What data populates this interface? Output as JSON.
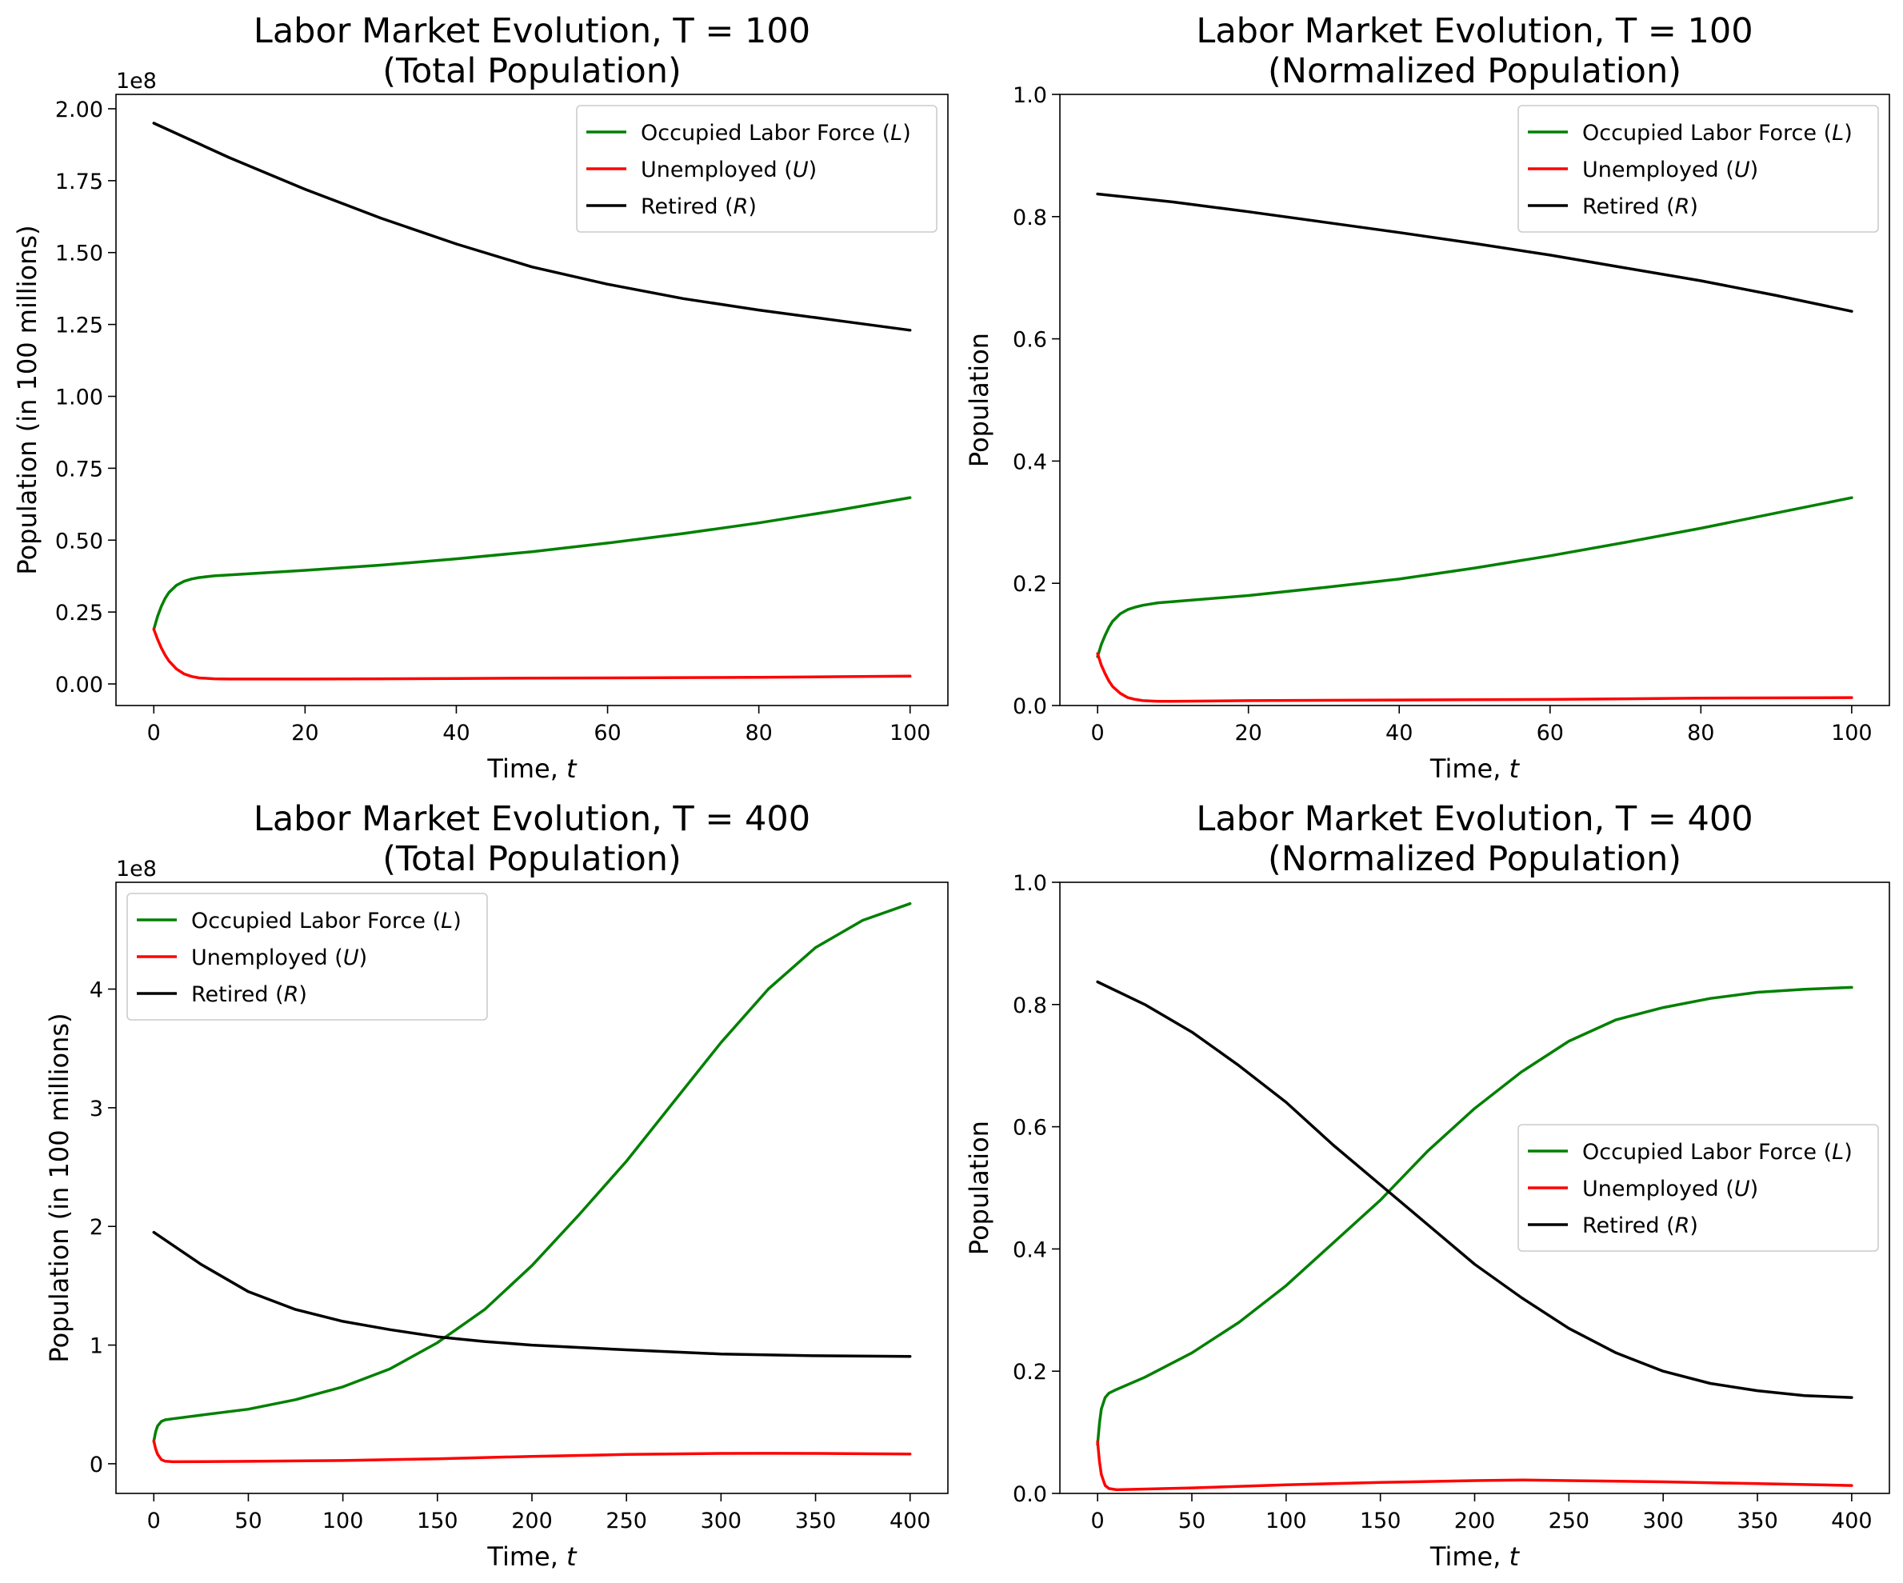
{
  "colors": {
    "L": "#008000",
    "U": "#ff0000",
    "R": "#000000"
  },
  "chart_data": [
    {
      "type": "line",
      "title_line1": "Labor Market Evolution, T = 100",
      "title_line2": "(Total Population)",
      "xlabel_text": "Time, ",
      "xlabel_var": "t",
      "ylabel": "Population (in 100 millions)",
      "offset_label": "1e8",
      "xlim": [
        -5,
        105
      ],
      "ylim": [
        -0.075,
        2.05
      ],
      "xticks": [
        0,
        20,
        40,
        60,
        80,
        100
      ],
      "xtick_labels": [
        "0",
        "20",
        "40",
        "60",
        "80",
        "100"
      ],
      "yticks": [
        0,
        0.25,
        0.5,
        0.75,
        1.0,
        1.25,
        1.5,
        1.75,
        2.0
      ],
      "ytick_labels": [
        "0.00",
        "0.25",
        "0.50",
        "0.75",
        "1.00",
        "1.25",
        "1.50",
        "1.75",
        "2.00"
      ],
      "legend_position": "upper right",
      "series": [
        {
          "key": "L",
          "name": "Occupied Labor Force",
          "symbol": "L",
          "x": [
            0,
            0.5,
            1,
            1.5,
            2,
            3,
            4,
            5,
            6,
            8,
            10,
            15,
            20,
            30,
            40,
            50,
            60,
            70,
            80,
            90,
            100
          ],
          "y": [
            0.19,
            0.235,
            0.27,
            0.298,
            0.318,
            0.343,
            0.357,
            0.365,
            0.37,
            0.376,
            0.379,
            0.387,
            0.395,
            0.413,
            0.435,
            0.46,
            0.49,
            0.523,
            0.56,
            0.602,
            0.648
          ]
        },
        {
          "key": "U",
          "name": "Unemployed",
          "symbol": "U",
          "x": [
            0,
            0.5,
            1,
            1.5,
            2,
            3,
            4,
            5,
            6,
            8,
            10,
            20,
            30,
            40,
            50,
            60,
            70,
            80,
            90,
            100
          ],
          "y": [
            0.19,
            0.155,
            0.125,
            0.1,
            0.08,
            0.052,
            0.035,
            0.026,
            0.021,
            0.018,
            0.017,
            0.017,
            0.018,
            0.019,
            0.02,
            0.021,
            0.022,
            0.023,
            0.025,
            0.027
          ]
        },
        {
          "key": "R",
          "name": "Retired",
          "symbol": "R",
          "x": [
            0,
            10,
            20,
            30,
            40,
            50,
            60,
            70,
            80,
            90,
            100
          ],
          "y": [
            1.95,
            1.83,
            1.72,
            1.62,
            1.53,
            1.45,
            1.39,
            1.34,
            1.3,
            1.265,
            1.23
          ]
        }
      ]
    },
    {
      "type": "line",
      "title_line1": "Labor Market Evolution, T = 100",
      "title_line2": "(Normalized Population)",
      "xlabel_text": "Time, ",
      "xlabel_var": "t",
      "ylabel": "Population",
      "offset_label": "",
      "xlim": [
        -5,
        105
      ],
      "ylim": [
        0,
        1.0
      ],
      "xticks": [
        0,
        20,
        40,
        60,
        80,
        100
      ],
      "xtick_labels": [
        "0",
        "20",
        "40",
        "60",
        "80",
        "100"
      ],
      "yticks": [
        0,
        0.2,
        0.4,
        0.6,
        0.8,
        1.0
      ],
      "ytick_labels": [
        "0.0",
        "0.2",
        "0.4",
        "0.6",
        "0.8",
        "1.0"
      ],
      "legend_position": "upper right",
      "series": [
        {
          "key": "L",
          "name": "Occupied Labor Force",
          "symbol": "L",
          "x": [
            0,
            0.5,
            1,
            1.5,
            2,
            3,
            4,
            5,
            6,
            8,
            10,
            20,
            30,
            40,
            50,
            60,
            70,
            80,
            90,
            100
          ],
          "y": [
            0.08,
            0.1,
            0.115,
            0.128,
            0.138,
            0.15,
            0.157,
            0.161,
            0.164,
            0.168,
            0.17,
            0.18,
            0.193,
            0.207,
            0.225,
            0.245,
            0.267,
            0.29,
            0.315,
            0.34
          ]
        },
        {
          "key": "U",
          "name": "Unemployed",
          "symbol": "U",
          "x": [
            0,
            0.5,
            1,
            1.5,
            2,
            3,
            4,
            5,
            6,
            8,
            10,
            20,
            40,
            60,
            80,
            100
          ],
          "y": [
            0.085,
            0.066,
            0.052,
            0.04,
            0.031,
            0.02,
            0.013,
            0.01,
            0.008,
            0.007,
            0.007,
            0.008,
            0.009,
            0.01,
            0.012,
            0.013
          ]
        },
        {
          "key": "R",
          "name": "Retired",
          "symbol": "R",
          "x": [
            0,
            10,
            20,
            30,
            40,
            50,
            60,
            70,
            80,
            90,
            100
          ],
          "y": [
            0.837,
            0.824,
            0.808,
            0.791,
            0.774,
            0.756,
            0.737,
            0.716,
            0.695,
            0.671,
            0.645
          ]
        }
      ]
    },
    {
      "type": "line",
      "title_line1": "Labor Market Evolution, T = 400",
      "title_line2": "(Total Population)",
      "xlabel_text": "Time, ",
      "xlabel_var": "t",
      "ylabel": "Population (in 100 millions)",
      "offset_label": "1e8",
      "xlim": [
        -20,
        420
      ],
      "ylim": [
        -0.25,
        4.9
      ],
      "xticks": [
        0,
        50,
        100,
        150,
        200,
        250,
        300,
        350,
        400
      ],
      "xtick_labels": [
        "0",
        "50",
        "100",
        "150",
        "200",
        "250",
        "300",
        "350",
        "400"
      ],
      "yticks": [
        0,
        1,
        2,
        3,
        4
      ],
      "ytick_labels": [
        "0",
        "1",
        "2",
        "3",
        "4"
      ],
      "legend_position": "upper left",
      "series": [
        {
          "key": "L",
          "name": "Occupied Labor Force",
          "symbol": "L",
          "x": [
            0,
            1,
            2,
            4,
            6,
            10,
            25,
            50,
            75,
            100,
            125,
            150,
            175,
            200,
            225,
            250,
            275,
            300,
            325,
            350,
            375,
            400
          ],
          "y": [
            0.19,
            0.27,
            0.318,
            0.357,
            0.37,
            0.379,
            0.41,
            0.46,
            0.54,
            0.648,
            0.8,
            1.02,
            1.3,
            1.67,
            2.1,
            2.55,
            3.05,
            3.55,
            4.0,
            4.35,
            4.58,
            4.72
          ]
        },
        {
          "key": "U",
          "name": "Unemployed",
          "symbol": "U",
          "x": [
            0,
            1,
            2,
            4,
            6,
            10,
            50,
            100,
            150,
            200,
            250,
            300,
            325,
            350,
            400
          ],
          "y": [
            0.19,
            0.125,
            0.08,
            0.035,
            0.021,
            0.017,
            0.02,
            0.027,
            0.042,
            0.062,
            0.078,
            0.087,
            0.088,
            0.087,
            0.082
          ]
        },
        {
          "key": "R",
          "name": "Retired",
          "symbol": "R",
          "x": [
            0,
            25,
            50,
            75,
            100,
            125,
            150,
            175,
            200,
            250,
            300,
            350,
            400
          ],
          "y": [
            1.95,
            1.68,
            1.45,
            1.3,
            1.2,
            1.13,
            1.07,
            1.03,
            1.0,
            0.96,
            0.925,
            0.91,
            0.905
          ]
        }
      ]
    },
    {
      "type": "line",
      "title_line1": "Labor Market Evolution, T = 400",
      "title_line2": "(Normalized Population)",
      "xlabel_text": "Time, ",
      "xlabel_var": "t",
      "ylabel": "Population",
      "offset_label": "",
      "xlim": [
        -20,
        420
      ],
      "ylim": [
        0,
        1.0
      ],
      "xticks": [
        0,
        50,
        100,
        150,
        200,
        250,
        300,
        350,
        400
      ],
      "xtick_labels": [
        "0",
        "50",
        "100",
        "150",
        "200",
        "250",
        "300",
        "350",
        "400"
      ],
      "yticks": [
        0,
        0.2,
        0.4,
        0.6,
        0.8,
        1.0
      ],
      "ytick_labels": [
        "0.0",
        "0.2",
        "0.4",
        "0.6",
        "0.8",
        "1.0"
      ],
      "legend_position": "center right",
      "series": [
        {
          "key": "L",
          "name": "Occupied Labor Force",
          "symbol": "L",
          "x": [
            0,
            1,
            2,
            4,
            6,
            10,
            25,
            50,
            75,
            100,
            125,
            150,
            175,
            200,
            225,
            250,
            275,
            300,
            325,
            350,
            375,
            400
          ],
          "y": [
            0.08,
            0.115,
            0.138,
            0.157,
            0.164,
            0.17,
            0.19,
            0.23,
            0.28,
            0.34,
            0.41,
            0.48,
            0.56,
            0.63,
            0.69,
            0.74,
            0.775,
            0.795,
            0.81,
            0.82,
            0.825,
            0.828
          ]
        },
        {
          "key": "U",
          "name": "Unemployed",
          "symbol": "U",
          "x": [
            0,
            1,
            2,
            4,
            6,
            10,
            50,
            100,
            150,
            200,
            225,
            250,
            300,
            350,
            400
          ],
          "y": [
            0.085,
            0.052,
            0.031,
            0.013,
            0.008,
            0.006,
            0.009,
            0.014,
            0.018,
            0.021,
            0.022,
            0.021,
            0.019,
            0.016,
            0.013
          ]
        },
        {
          "key": "R",
          "name": "Retired",
          "symbol": "R",
          "x": [
            0,
            25,
            50,
            75,
            100,
            125,
            150,
            175,
            200,
            225,
            250,
            275,
            300,
            325,
            350,
            375,
            400
          ],
          "y": [
            0.837,
            0.8,
            0.755,
            0.7,
            0.64,
            0.57,
            0.505,
            0.44,
            0.375,
            0.32,
            0.27,
            0.23,
            0.2,
            0.18,
            0.168,
            0.16,
            0.157
          ]
        }
      ]
    }
  ]
}
